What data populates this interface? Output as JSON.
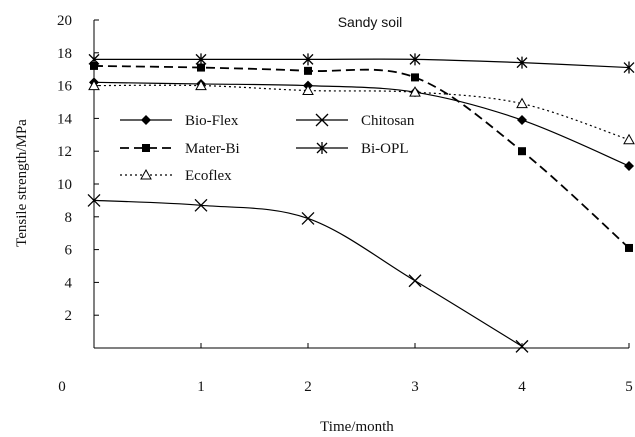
{
  "chart_data": {
    "type": "line",
    "annotation": "Sandy soil",
    "xlabel": "Time/month",
    "ylabel": "Tensile strength/MPa",
    "xlim": [
      0,
      5
    ],
    "ylim": [
      0,
      20
    ],
    "x_ticks": [
      "0",
      "1",
      "2",
      "3",
      "4",
      "5"
    ],
    "y_ticks": [
      "2",
      "4",
      "6",
      "8",
      "10",
      "12",
      "14",
      "16",
      "18",
      "20"
    ],
    "grid": false,
    "legend_position": "center-left",
    "series": [
      {
        "name": "Bio-Flex",
        "marker": "diamond",
        "dash": "solid",
        "color": "#000000",
        "x": [
          0,
          1,
          2,
          3,
          4,
          5
        ],
        "y": [
          16.2,
          16.1,
          16.0,
          15.6,
          13.9,
          11.1
        ]
      },
      {
        "name": "Chitosan",
        "marker": "x",
        "dash": "solid",
        "color": "#000000",
        "x": [
          0,
          1,
          2,
          3,
          4
        ],
        "y": [
          9.0,
          8.7,
          7.9,
          4.1,
          0.1
        ]
      },
      {
        "name": "Mater-Bi",
        "marker": "square",
        "dash": "long-dash",
        "color": "#000000",
        "x": [
          0,
          1,
          2,
          3,
          4,
          5
        ],
        "y": [
          17.2,
          17.1,
          16.9,
          16.5,
          12.0,
          6.1
        ]
      },
      {
        "name": "Bi-OPL",
        "marker": "asterisk",
        "dash": "solid",
        "color": "#000000",
        "x": [
          0,
          1,
          2,
          3,
          4,
          5
        ],
        "y": [
          17.6,
          17.6,
          17.6,
          17.6,
          17.4,
          17.1
        ]
      },
      {
        "name": "Ecoflex",
        "marker": "triangle-open",
        "dash": "dotted",
        "color": "#000000",
        "x": [
          0,
          1,
          2,
          3,
          4,
          5
        ],
        "y": [
          16.0,
          16.0,
          15.7,
          15.6,
          14.9,
          12.7
        ]
      }
    ]
  }
}
